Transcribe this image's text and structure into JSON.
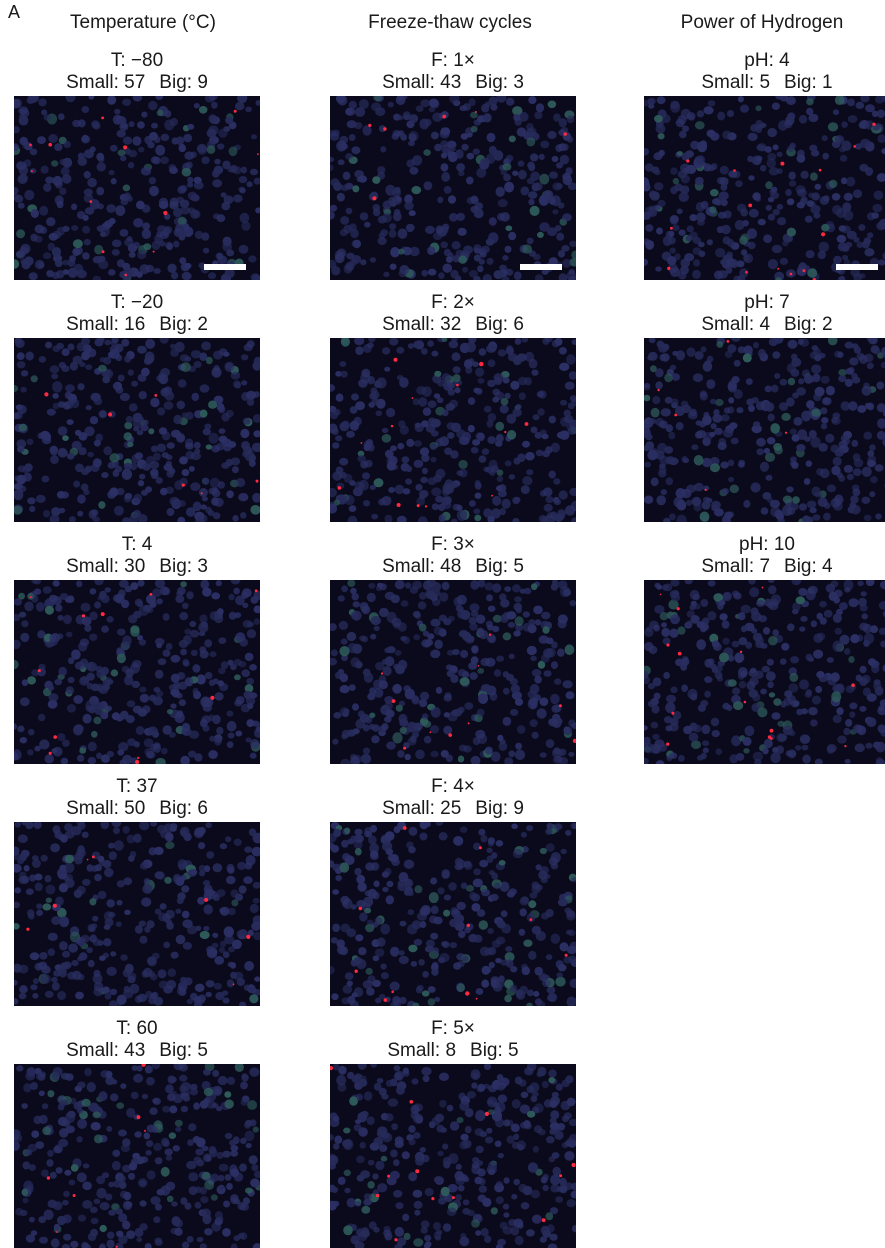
{
  "panel_label": "A",
  "columns": [
    {
      "header": "Temperature (°C)",
      "cells": [
        {
          "condition": "T: −80",
          "small_label": "Small:",
          "small": "57",
          "big_label": "Big:",
          "big": "9",
          "scalebar": true
        },
        {
          "condition": "T: −20",
          "small_label": "Small:",
          "small": "16",
          "big_label": "Big:",
          "big": "2",
          "scalebar": false
        },
        {
          "condition": "T: 4",
          "small_label": "Small:",
          "small": "30",
          "big_label": "Big:",
          "big": "3",
          "scalebar": false
        },
        {
          "condition": "T: 37",
          "small_label": "Small:",
          "small": "50",
          "big_label": "Big:",
          "big": "6",
          "scalebar": false
        },
        {
          "condition": "T: 60",
          "small_label": "Small:",
          "small": "43",
          "big_label": "Big:",
          "big": "5",
          "scalebar": false
        }
      ]
    },
    {
      "header": "Freeze-thaw cycles",
      "cells": [
        {
          "condition": "F: 1×",
          "small_label": "Small:",
          "small": "43",
          "big_label": "Big:",
          "big": "3",
          "scalebar": true
        },
        {
          "condition": "F: 2×",
          "small_label": "Small:",
          "small": "32",
          "big_label": "Big:",
          "big": "6",
          "scalebar": false
        },
        {
          "condition": "F: 3×",
          "small_label": "Small:",
          "small": "48",
          "big_label": "Big:",
          "big": "5",
          "scalebar": false
        },
        {
          "condition": "F: 4×",
          "small_label": "Small:",
          "small": "25",
          "big_label": "Big:",
          "big": "9",
          "scalebar": false
        },
        {
          "condition": "F: 5×",
          "small_label": "Small:",
          "small": "8",
          "big_label": "Big:",
          "big": "5",
          "scalebar": false
        }
      ]
    },
    {
      "header": "Power of Hydrogen",
      "cells": [
        {
          "condition": "pH: 4",
          "small_label": "Small:",
          "small": "5",
          "big_label": "Big:",
          "big": "1",
          "scalebar": true
        },
        {
          "condition": "pH: 7",
          "small_label": "Small:",
          "small": "4",
          "big_label": "Big:",
          "big": "2",
          "scalebar": false
        },
        {
          "condition": "pH: 10",
          "small_label": "Small:",
          "small": "7",
          "big_label": "Big:",
          "big": "4",
          "scalebar": false
        }
      ]
    }
  ]
}
